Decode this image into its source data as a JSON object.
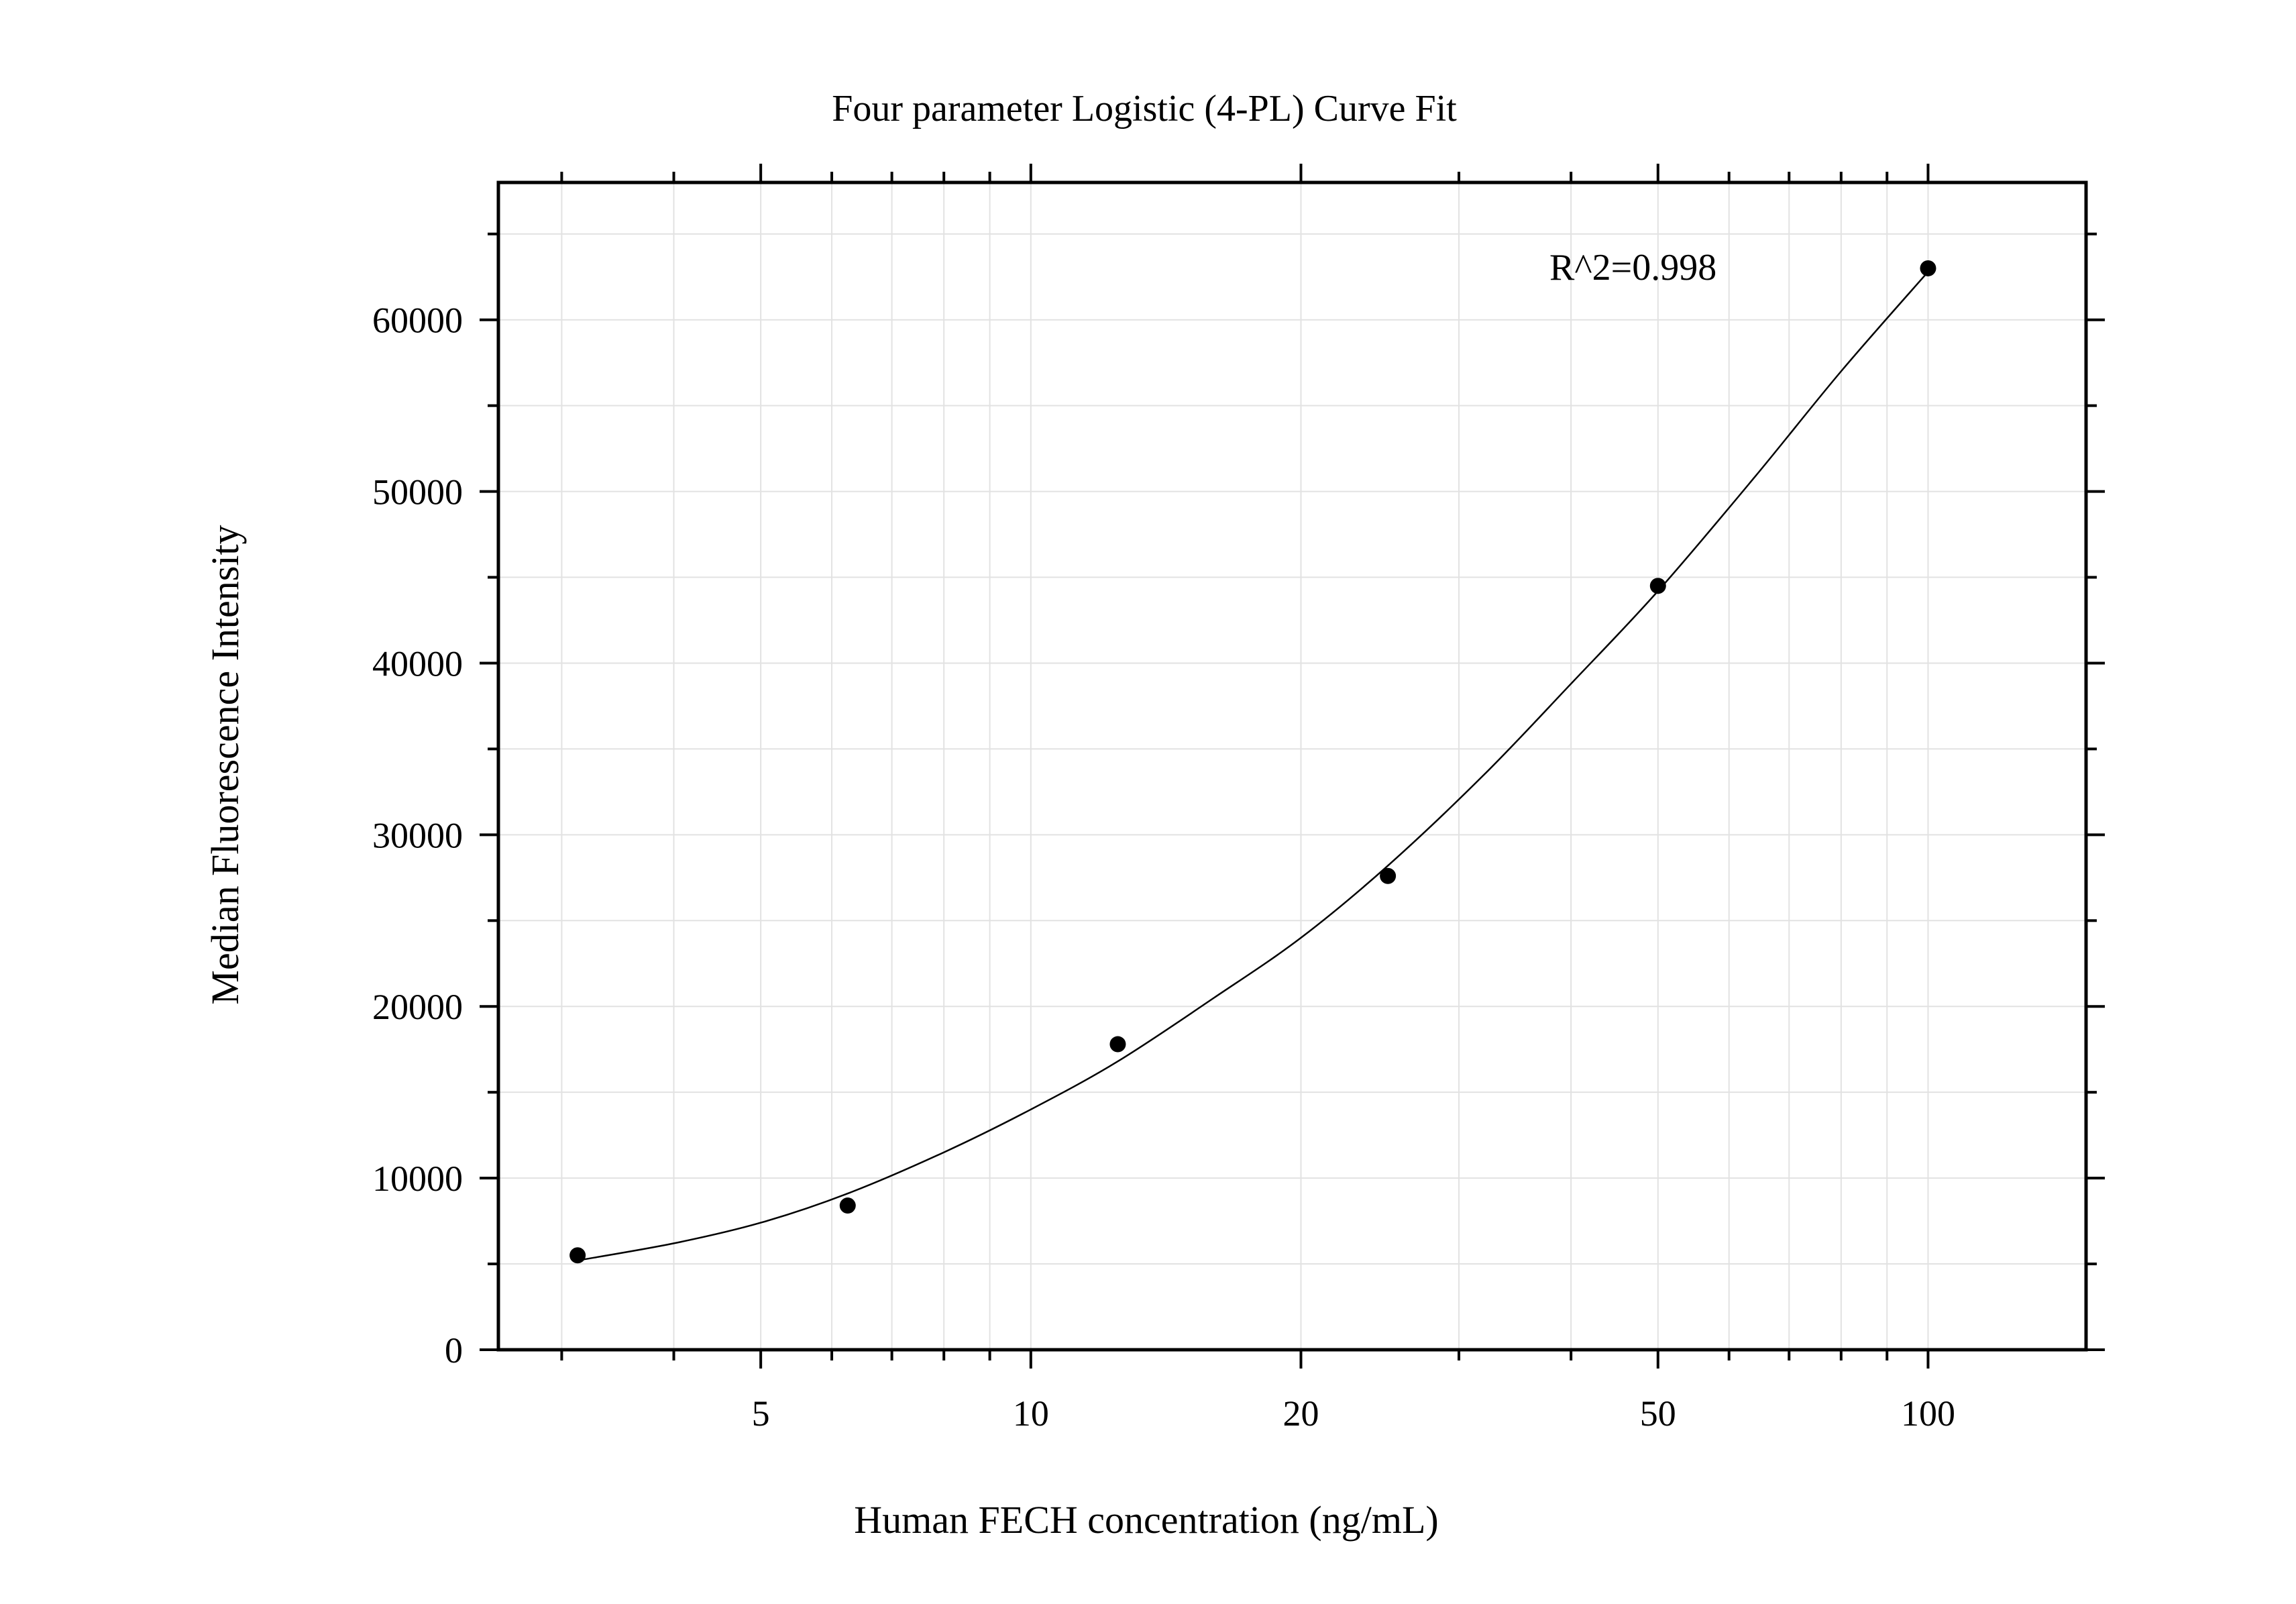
{
  "chart_data": {
    "type": "scatter",
    "title": "Four parameter Logistic (4-PL) Curve Fit",
    "xlabel": "Human FECH concentration (ng/mL)",
    "ylabel": "Median Fluorescence Intensity",
    "x_scale": "log",
    "xlim": [
      2.55,
      150
    ],
    "ylim": [
      0,
      68000
    ],
    "grid": true,
    "x_ticks": [
      5,
      10,
      20,
      50,
      100
    ],
    "y_ticks": [
      0,
      10000,
      20000,
      30000,
      40000,
      50000,
      60000
    ],
    "annotation": "R^2=0.998",
    "series": [
      {
        "points": [
          {
            "x": 3.125,
            "y": 5500
          },
          {
            "x": 6.25,
            "y": 8400
          },
          {
            "x": 12.5,
            "y": 17800
          },
          {
            "x": 25,
            "y": 27600
          },
          {
            "x": 50,
            "y": 44500
          },
          {
            "x": 100,
            "y": 63000
          }
        ]
      }
    ],
    "fit_curve": {
      "model": "4-PL",
      "points": [
        {
          "x": 3.125,
          "y": 5200
        },
        {
          "x": 4,
          "y": 6200
        },
        {
          "x": 5,
          "y": 7400
        },
        {
          "x": 6.25,
          "y": 9100
        },
        {
          "x": 8,
          "y": 11500
        },
        {
          "x": 10,
          "y": 14000
        },
        {
          "x": 12.5,
          "y": 16800
        },
        {
          "x": 16,
          "y": 20500
        },
        {
          "x": 20,
          "y": 24000
        },
        {
          "x": 25,
          "y": 28200
        },
        {
          "x": 32,
          "y": 33500
        },
        {
          "x": 40,
          "y": 38800
        },
        {
          "x": 50,
          "y": 44200
        },
        {
          "x": 64,
          "y": 50800
        },
        {
          "x": 80,
          "y": 57000
        },
        {
          "x": 100,
          "y": 62800
        }
      ]
    }
  }
}
